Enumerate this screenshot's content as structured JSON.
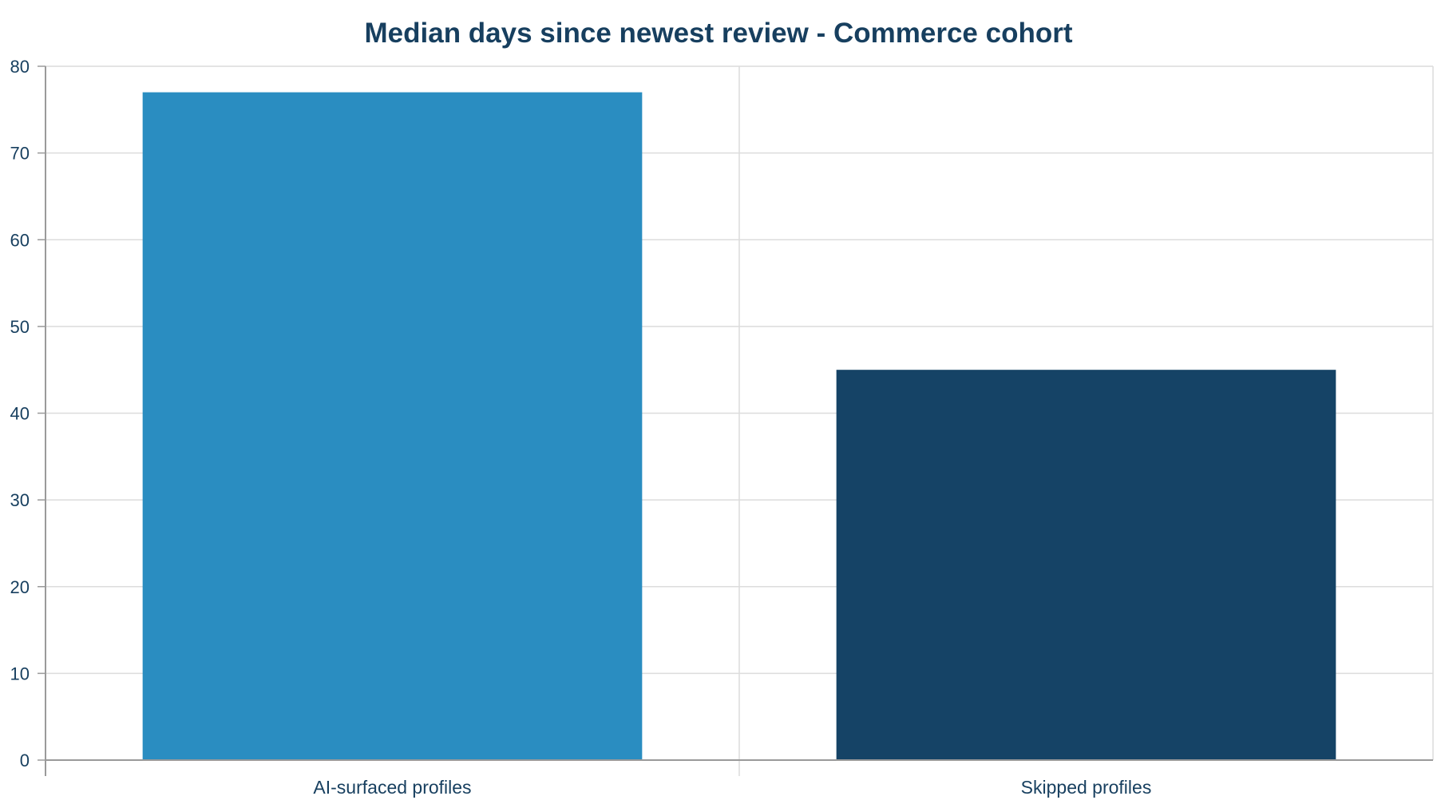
{
  "colors": {
    "text": "#173f5f",
    "grid": "#dcdcdc",
    "axis": "#9a9a9a",
    "background": "#ffffff"
  },
  "chart_data": {
    "type": "bar",
    "title": "Median days since newest review - Commerce cohort",
    "xlabel": "",
    "ylabel": "",
    "categories": [
      "AI-surfaced profiles",
      "Skipped profiles"
    ],
    "values": [
      77,
      45
    ],
    "bar_colors": [
      "#2a8dc1",
      "#154366"
    ],
    "ylim": [
      0,
      80
    ],
    "yticks": [
      0,
      10,
      20,
      30,
      40,
      50,
      60,
      70,
      80
    ],
    "grid": true,
    "legend": "none"
  }
}
